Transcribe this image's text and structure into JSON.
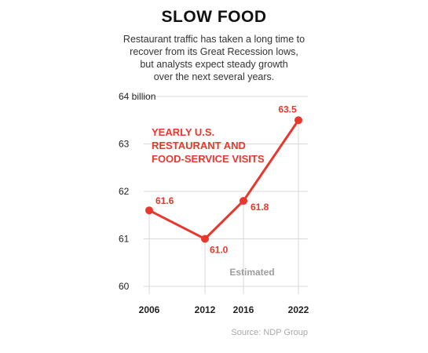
{
  "title": "SLOW FOOD",
  "subtitle_lines": [
    "Restaurant traffic has taken a long time to",
    "recover from its Great Recession lows,",
    "but analysts expect steady growth",
    "over the next several years."
  ],
  "source": "Source: NDP Group",
  "colors": {
    "series": "#e8372c",
    "grid": "#d9d9d9",
    "note": "#9e9e9e"
  },
  "chart_data": {
    "type": "line",
    "x": [
      "2006",
      "2012",
      "2016",
      "2022"
    ],
    "series": [
      {
        "name": "YEARLY U.S. RESTAURANT AND FOOD-SERVICE VISITS",
        "name_lines": [
          "YEARLY U.S.",
          "RESTAURANT AND",
          "FOOD-SERVICE VISITS"
        ],
        "values": [
          61.6,
          61.0,
          61.8,
          63.5
        ],
        "labels": [
          "61.6",
          "61.0",
          "61.8",
          "63.5"
        ]
      }
    ],
    "yticks": [
      {
        "value": 64,
        "label": "64 billion"
      },
      {
        "value": 63,
        "label": "63"
      },
      {
        "value": 62,
        "label": "62"
      },
      {
        "value": 61,
        "label": "61"
      },
      {
        "value": 60,
        "label": "60"
      }
    ],
    "ylim": [
      60,
      64
    ],
    "annotation": {
      "text": "Estimated",
      "between": [
        "2016",
        "2022"
      ]
    },
    "grid": true
  }
}
